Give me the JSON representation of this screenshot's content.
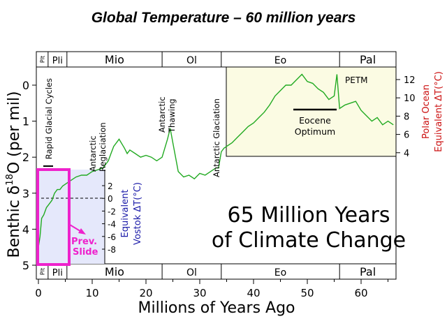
{
  "slide_title": "Global Temperature – 60 million years",
  "colors": {
    "curve": "#22aa22",
    "inset_bg": "#fbfbe3",
    "left_inset_bg": "#e5e8fb",
    "highlight": "#ee22cc",
    "vostok_axis": "#1a1aa8",
    "polar_axis": "#cc1111"
  },
  "chart_data": {
    "type": "line",
    "title": "65 Million Years of Climate Change",
    "title_lines": [
      "65 Million Years",
      "of Climate Change"
    ],
    "xlabel": "Millions of Years Ago",
    "ylabel_main": "Benthic δ",
    "ylabel_sup": "18",
    "ylabel_tail": "O (per mil)",
    "xlim": [
      0,
      67
    ],
    "ylim": [
      0,
      5
    ],
    "y_inverted": true,
    "x_ticks": [
      0,
      10,
      20,
      30,
      40,
      50,
      60
    ],
    "y_ticks": [
      0,
      1,
      2,
      3,
      4,
      5
    ],
    "epochs": [
      {
        "label": "Plt",
        "from": 0,
        "to": 1.8,
        "vertical": true
      },
      {
        "label": "Pli",
        "from": 1.8,
        "to": 5.3
      },
      {
        "label": "Mio",
        "from": 5.3,
        "to": 23
      },
      {
        "label": "Ol",
        "from": 23,
        "to": 34
      },
      {
        "label": "Eo",
        "from": 34,
        "to": 56
      },
      {
        "label": "Pal",
        "from": 56,
        "to": 67
      }
    ],
    "annotations": [
      {
        "text": "Rapid Glacial Cycles",
        "x": 1.5,
        "y_top": 0.05
      },
      {
        "text": "Antarctic",
        "text2": "Reglaciation",
        "x": 11.5,
        "y_top": 1.3
      },
      {
        "text": "Antarctic",
        "text2": "Thawing",
        "x": 24.5,
        "y_top": 0.5
      },
      {
        "text": "Antarctic Glaciation",
        "x": 32.8,
        "y_top": 0.1
      }
    ],
    "inset_annotations": {
      "petm": "PETM",
      "eocene_1": "Eocene",
      "eocene_2": "Optimum"
    },
    "prev_slide": [
      "Prev.",
      "Slide"
    ],
    "vostok_axis": {
      "label_1": "Equivalent",
      "label_2": "Vostok ΔT(°C)",
      "ticks": [
        "2",
        "0",
        "-2",
        "-4",
        "-6",
        "-8"
      ]
    },
    "polar_axis": {
      "label_1": "Polar Ocean",
      "label_2": "Equivalent ΔT(°C)",
      "ticks": [
        "12",
        "10",
        "8",
        "6",
        "4"
      ]
    },
    "series": [
      {
        "x": [
          0.0,
          0.3,
          0.6,
          1.0,
          1.5,
          2.0,
          2.5,
          3.0,
          3.5,
          4.0,
          4.5,
          5.0,
          5.5,
          6,
          7,
          8,
          9,
          10,
          11,
          12,
          13,
          13.5,
          14,
          14.5,
          15,
          16,
          16.5,
          17,
          18,
          19,
          20,
          21,
          22,
          23,
          24,
          24.5,
          25,
          26,
          27,
          28,
          29,
          30,
          31,
          32,
          33,
          33.5,
          34,
          34.5,
          35,
          36,
          37,
          38,
          39,
          40,
          41,
          42,
          43,
          44,
          45,
          46,
          47,
          48,
          49,
          50,
          51,
          52,
          53,
          54,
          55,
          55.5,
          56,
          57,
          58,
          59,
          60,
          61,
          62,
          63,
          64,
          65,
          66
        ],
        "y": [
          4.5,
          4.2,
          3.7,
          3.6,
          3.4,
          3.3,
          3.2,
          3.0,
          2.9,
          2.9,
          2.8,
          2.75,
          2.7,
          2.65,
          2.55,
          2.5,
          2.5,
          2.4,
          2.35,
          2.3,
          2.1,
          1.9,
          1.7,
          1.6,
          1.5,
          1.75,
          1.9,
          1.8,
          1.9,
          2.0,
          1.95,
          2.0,
          2.1,
          2.0,
          1.5,
          1.2,
          1.6,
          2.4,
          2.55,
          2.5,
          2.6,
          2.45,
          2.5,
          2.4,
          2.3,
          2.3,
          1.85,
          1.75,
          1.7,
          1.6,
          1.45,
          1.3,
          1.15,
          1.05,
          0.9,
          0.75,
          0.55,
          0.3,
          0.15,
          0.0,
          0.0,
          -0.15,
          -0.3,
          -0.1,
          -0.05,
          0.1,
          0.2,
          0.4,
          0.3,
          -0.3,
          0.65,
          0.55,
          0.5,
          0.45,
          0.7,
          0.85,
          1.0,
          0.9,
          1.1,
          1.0,
          1.1
        ]
      }
    ],
    "legend": "none",
    "grid": false
  }
}
